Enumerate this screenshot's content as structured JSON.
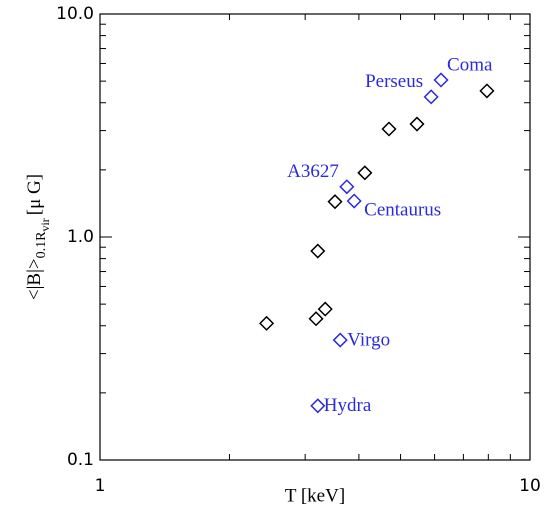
{
  "chart_data": {
    "type": "scatter",
    "xlabel": "T [keV]",
    "ylabel": "<|B|>",
    "ylabel_sub": "0.1R",
    "ylabel_subsub": "vir",
    "ylabel_unit": "[μ G]",
    "xscale": "log",
    "yscale": "log",
    "xlim": [
      1,
      10
    ],
    "ylim": [
      0.1,
      10
    ],
    "xticks": [
      1,
      10
    ],
    "yticks": [
      0.1,
      {
        "value": 1,
        "label": "1.0"
      },
      {
        "value": 10,
        "label": "10.0"
      }
    ],
    "xminorticks": [
      2,
      3,
      4,
      5,
      6,
      7,
      8,
      9
    ],
    "yminorticks": [
      0.2,
      0.3,
      0.4,
      0.5,
      0.6,
      0.7,
      0.8,
      0.9,
      2,
      3,
      4,
      5,
      6,
      7,
      8,
      9
    ],
    "series": [
      {
        "color": "#000000",
        "x": [
          2.44,
          3.18,
          3.34,
          3.21,
          3.52,
          4.13,
          4.7,
          5.46,
          7.94
        ],
        "values": [
          0.41,
          0.43,
          0.475,
          0.865,
          1.44,
          1.94,
          3.05,
          3.21,
          4.52
        ]
      },
      {
        "color": "#2a2ae0",
        "x": [
          6.21,
          5.89,
          3.75,
          3.9,
          3.62,
          3.21
        ],
        "values": [
          5.06,
          4.25,
          1.68,
          1.45,
          0.345,
          0.175
        ],
        "labels": [
          "Coma",
          "Perseus",
          "A3627",
          "Centaurus",
          "Virgo",
          "Hydra"
        ]
      }
    ]
  }
}
